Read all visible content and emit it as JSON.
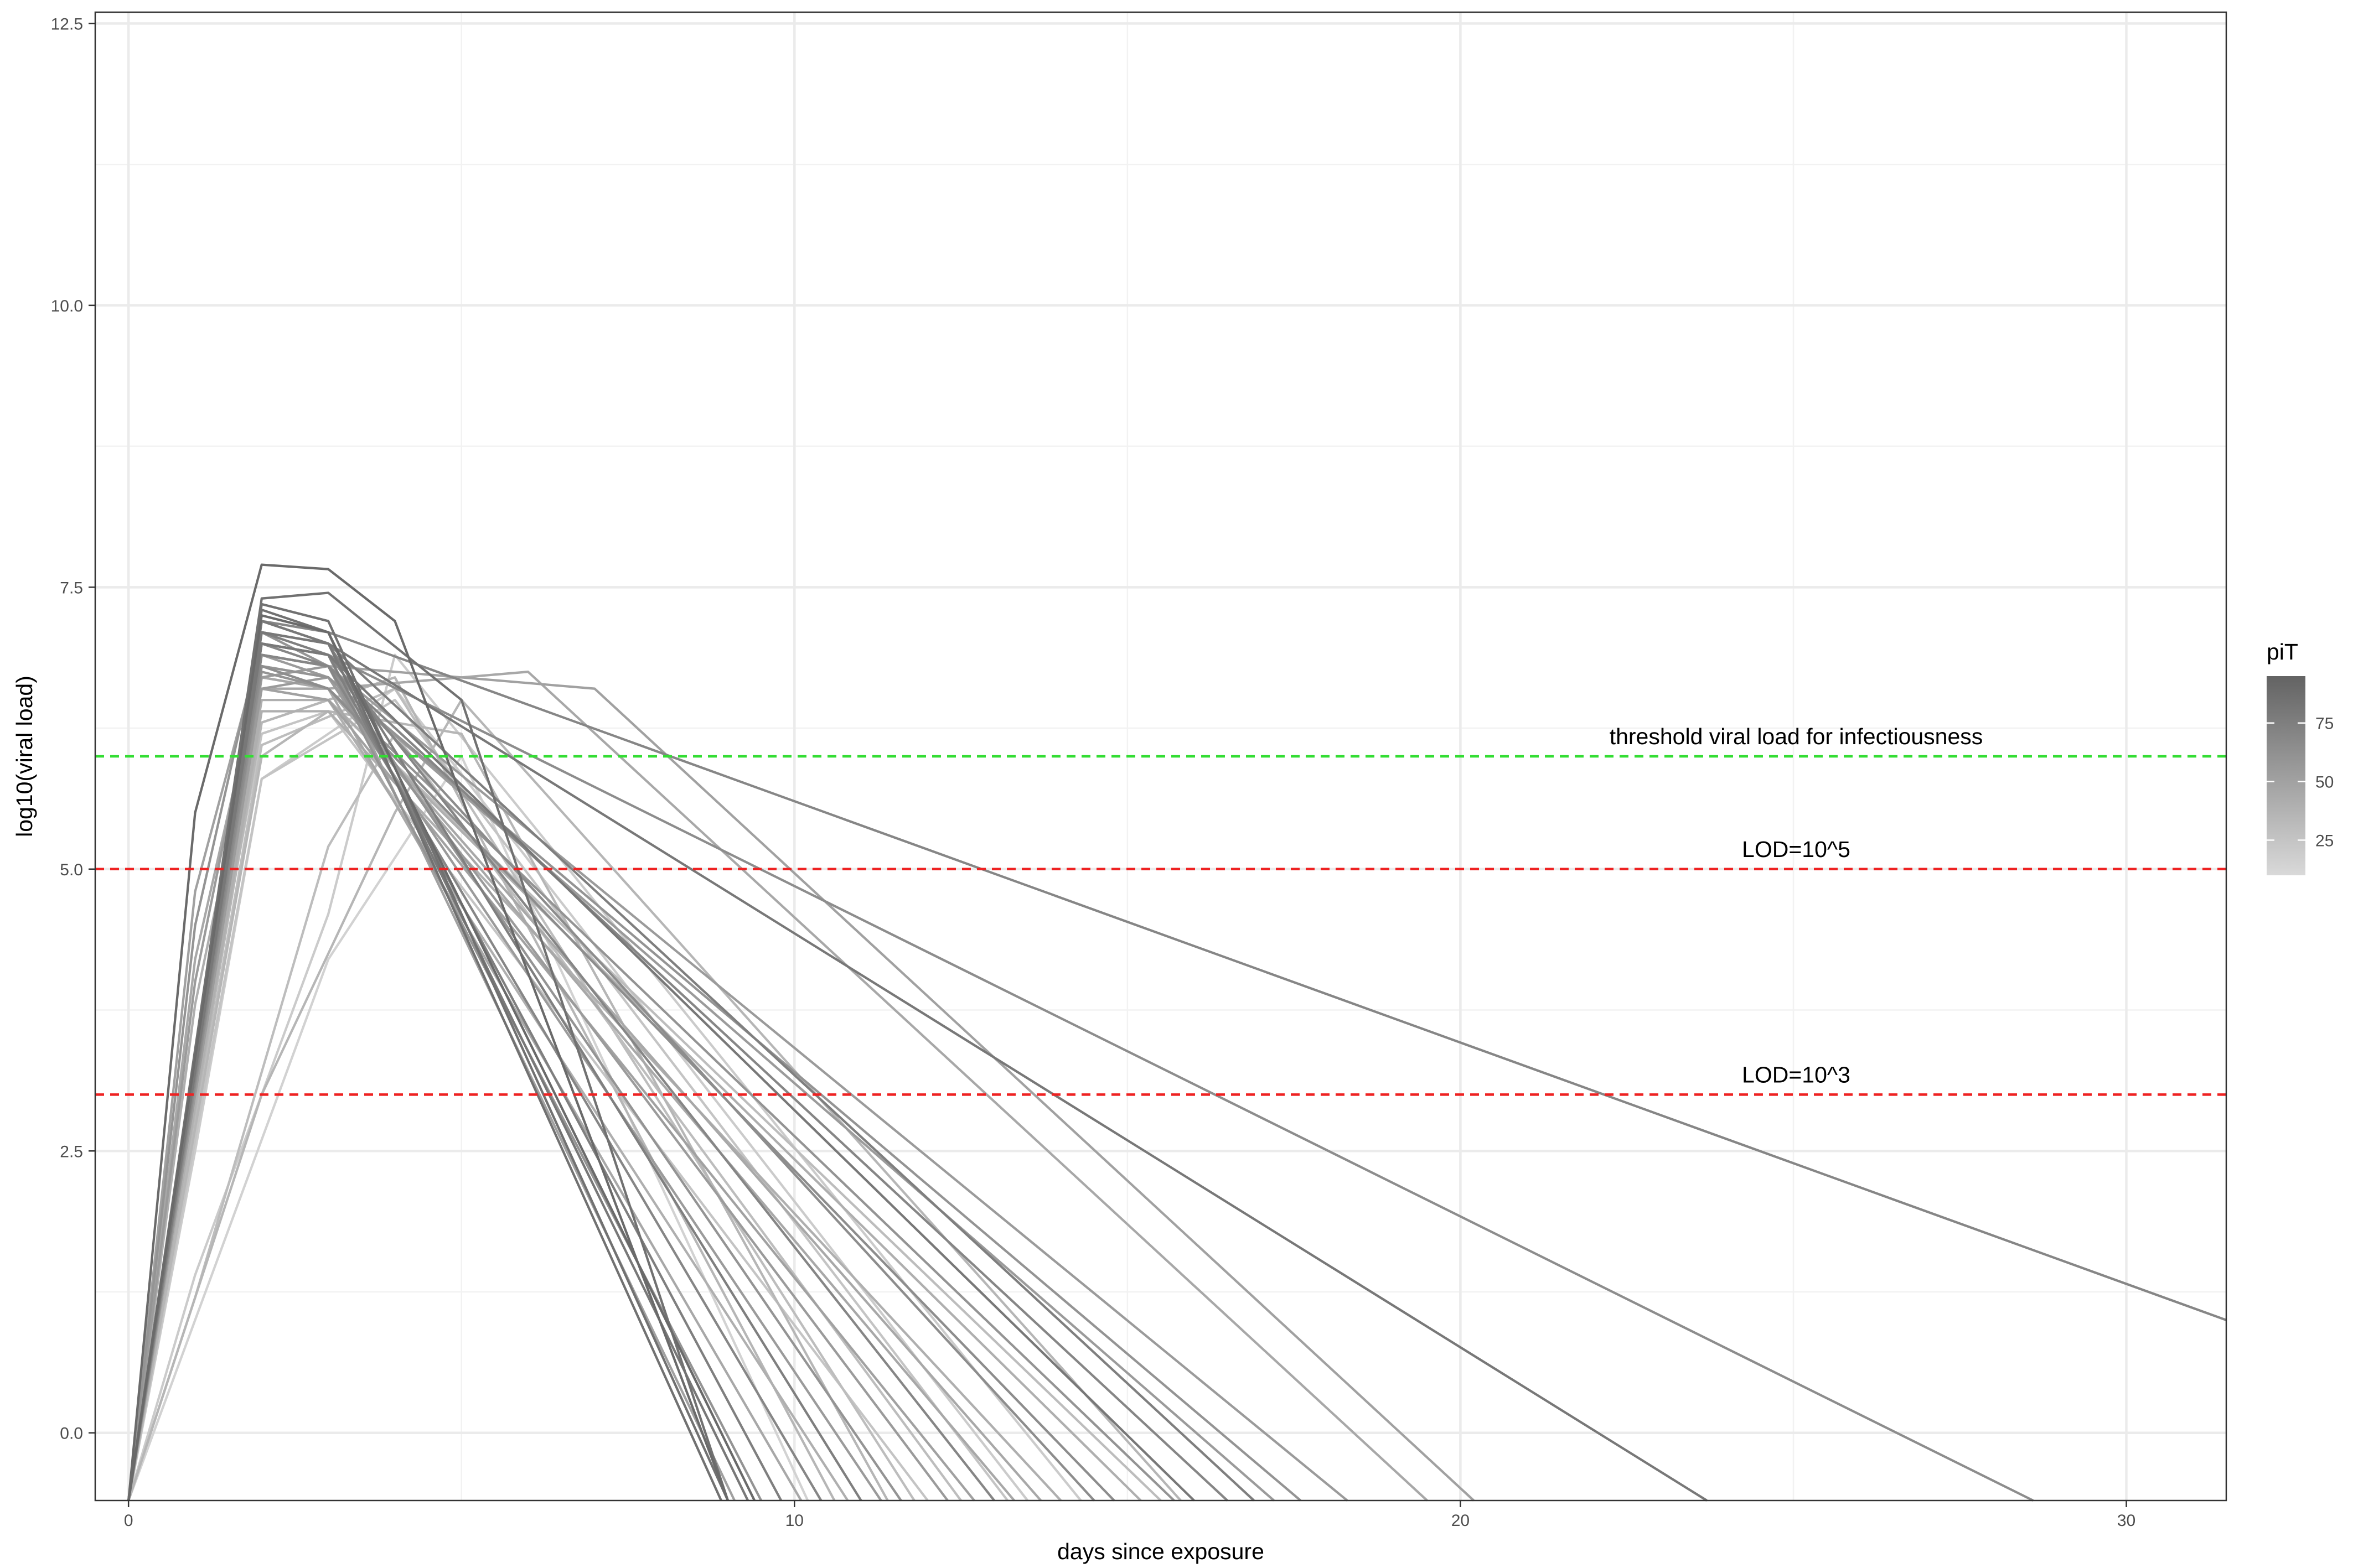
{
  "chart_data": {
    "type": "line",
    "xlabel": "days since exposure",
    "ylabel": "log10(viral load)",
    "xlim": [
      -0.5,
      31.5
    ],
    "ylim": [
      -0.6,
      12.6
    ],
    "x_ticks": [
      0,
      10,
      20,
      30
    ],
    "x_tick_labels": [
      "0",
      "10",
      "20",
      "30"
    ],
    "y_ticks": [
      0.0,
      2.5,
      5.0,
      7.5,
      10.0,
      12.5
    ],
    "y_tick_labels": [
      "0.0",
      "2.5",
      "5.0",
      "7.5",
      "10.0",
      "12.5"
    ],
    "grid": true,
    "legend": {
      "title": "piT",
      "type": "colorbar",
      "placement": "right",
      "ticks": [
        25,
        50,
        75
      ],
      "tick_labels": [
        "25",
        "50",
        "75"
      ],
      "range": [
        10,
        95
      ],
      "color_low": "#d9d9d9",
      "color_high": "#636363"
    },
    "hlines": [
      {
        "y": 6,
        "color": "#33dd33",
        "label": "threshold viral load for infectiousness"
      },
      {
        "y": 5,
        "color": "#ee2222",
        "label": "LOD=10^5"
      },
      {
        "y": 3,
        "color": "#ee2222",
        "label": "LOD=10^3"
      }
    ],
    "series": [
      {
        "piT": 90,
        "x": [
          0,
          1,
          2,
          3,
          4,
          9
        ],
        "y": [
          -0.6,
          5.5,
          7.7,
          7.66,
          7.2,
          -0.6
        ]
      },
      {
        "piT": 85,
        "x": [
          0,
          2,
          3,
          5,
          9
        ],
        "y": [
          -0.6,
          7.4,
          7.45,
          6.5,
          -0.6
        ]
      },
      {
        "piT": 70,
        "x": [
          0,
          2,
          3,
          31.5
        ],
        "y": [
          -0.6,
          7.2,
          7.1,
          1.0
        ]
      },
      {
        "piT": 65,
        "x": [
          0,
          2,
          3,
          28.6
        ],
        "y": [
          -0.6,
          7.0,
          6.9,
          -0.6
        ]
      },
      {
        "piT": 80,
        "x": [
          0,
          2,
          3,
          23.7
        ],
        "y": [
          -0.6,
          7.1,
          7.0,
          -0.6
        ]
      },
      {
        "piT": 50,
        "x": [
          0,
          2,
          3,
          7,
          20.2
        ],
        "y": [
          -0.6,
          6.9,
          6.8,
          6.6,
          -0.6
        ]
      },
      {
        "piT": 45,
        "x": [
          0,
          2,
          3,
          6,
          19.5
        ],
        "y": [
          -0.6,
          6.7,
          6.6,
          6.75,
          -0.6
        ]
      },
      {
        "piT": 85,
        "x": [
          0,
          2,
          3,
          8.9
        ],
        "y": [
          -0.6,
          7.3,
          7.1,
          -0.6
        ]
      },
      {
        "piT": 80,
        "x": [
          0,
          2,
          3,
          9.3
        ],
        "y": [
          -0.6,
          7.2,
          7.0,
          -0.6
        ]
      },
      {
        "piT": 75,
        "x": [
          0,
          2,
          3,
          9.8
        ],
        "y": [
          -0.6,
          7.1,
          6.9,
          -0.6
        ]
      },
      {
        "piT": 70,
        "x": [
          0,
          2,
          3,
          10.4
        ],
        "y": [
          -0.6,
          7.0,
          6.8,
          -0.6
        ]
      },
      {
        "piT": 75,
        "x": [
          0,
          2,
          3,
          11.0
        ],
        "y": [
          -0.6,
          7.2,
          7.0,
          -0.6
        ]
      },
      {
        "piT": 60,
        "x": [
          0,
          2,
          3,
          11.6
        ],
        "y": [
          -0.6,
          6.9,
          6.8,
          -0.6
        ]
      },
      {
        "piT": 55,
        "x": [
          0,
          2,
          3,
          12.3
        ],
        "y": [
          -0.6,
          6.8,
          6.7,
          -0.6
        ]
      },
      {
        "piT": 70,
        "x": [
          0,
          2,
          3,
          13.0
        ],
        "y": [
          -0.6,
          7.0,
          6.9,
          -0.6
        ]
      },
      {
        "piT": 45,
        "x": [
          0,
          2,
          3,
          13.7
        ],
        "y": [
          -0.6,
          6.6,
          6.6,
          -0.6
        ]
      },
      {
        "piT": 65,
        "x": [
          0,
          2,
          3,
          14.5
        ],
        "y": [
          -0.6,
          6.9,
          6.8,
          -0.6
        ]
      },
      {
        "piT": 40,
        "x": [
          0,
          2,
          3,
          15.2
        ],
        "y": [
          -0.6,
          6.5,
          6.5,
          -0.6
        ]
      },
      {
        "piT": 80,
        "x": [
          0,
          2,
          3,
          16.0
        ],
        "y": [
          -0.6,
          7.0,
          6.9,
          -0.6
        ]
      },
      {
        "piT": 75,
        "x": [
          0,
          2,
          3,
          16.9
        ],
        "y": [
          -0.6,
          7.1,
          7.0,
          -0.6
        ]
      },
      {
        "piT": 60,
        "x": [
          0,
          2,
          3,
          17.6
        ],
        "y": [
          -0.6,
          6.8,
          6.7,
          -0.6
        ]
      },
      {
        "piT": 55,
        "x": [
          0,
          2,
          3,
          18.3
        ],
        "y": [
          -0.6,
          6.7,
          6.8,
          -0.6
        ]
      },
      {
        "piT": 35,
        "x": [
          0,
          2,
          4,
          10.6
        ],
        "y": [
          -0.6,
          6.3,
          6.7,
          -0.6
        ]
      },
      {
        "piT": 30,
        "x": [
          0,
          2,
          4,
          11.8
        ],
        "y": [
          -0.6,
          6.1,
          6.6,
          -0.6
        ]
      },
      {
        "piT": 25,
        "x": [
          0,
          2,
          4,
          13.2
        ],
        "y": [
          -0.6,
          5.8,
          6.5,
          -0.6
        ]
      },
      {
        "piT": 30,
        "x": [
          0,
          1,
          3,
          4,
          12.5
        ],
        "y": [
          -0.6,
          1.2,
          5.2,
          6.2,
          -0.6
        ]
      },
      {
        "piT": 20,
        "x": [
          0,
          1,
          3,
          4,
          14.3
        ],
        "y": [
          -0.6,
          1.4,
          4.6,
          6.9,
          -0.6
        ]
      },
      {
        "piT": 35,
        "x": [
          0,
          2,
          4,
          5,
          15.8
        ],
        "y": [
          -0.6,
          3.0,
          5.5,
          6.5,
          -0.6
        ]
      },
      {
        "piT": 50,
        "x": [
          0,
          1,
          2,
          3,
          9.1
        ],
        "y": [
          -0.6,
          4.8,
          7.0,
          6.9,
          -0.6
        ]
      },
      {
        "piT": 60,
        "x": [
          0,
          1,
          2,
          3,
          9.5
        ],
        "y": [
          -0.6,
          4.5,
          7.1,
          6.8,
          -0.6
        ]
      },
      {
        "piT": 45,
        "x": [
          0,
          1,
          2,
          3,
          10.1
        ],
        "y": [
          -0.6,
          4.2,
          6.8,
          6.6,
          -0.6
        ]
      },
      {
        "piT": 40,
        "x": [
          0,
          1,
          2,
          3,
          10.8
        ],
        "y": [
          -0.6,
          3.8,
          6.6,
          6.5,
          -0.6
        ]
      },
      {
        "piT": 55,
        "x": [
          0,
          1,
          2,
          3,
          11.3
        ],
        "y": [
          -0.6,
          4.0,
          6.9,
          6.7,
          -0.6
        ]
      },
      {
        "piT": 25,
        "x": [
          0,
          1,
          2,
          3,
          12.0
        ],
        "y": [
          -0.6,
          3.0,
          6.2,
          6.4,
          -0.6
        ]
      },
      {
        "piT": 20,
        "x": [
          0,
          1,
          2,
          4,
          13.5
        ],
        "y": [
          -0.6,
          2.5,
          5.8,
          6.6,
          -0.6
        ]
      },
      {
        "piT": 50,
        "x": [
          0,
          2,
          3,
          12.7
        ],
        "y": [
          -0.6,
          6.6,
          6.5,
          -0.6
        ]
      },
      {
        "piT": 40,
        "x": [
          0,
          2,
          3,
          14.0
        ],
        "y": [
          -0.6,
          6.4,
          6.4,
          -0.6
        ]
      },
      {
        "piT": 65,
        "x": [
          0,
          2,
          3,
          14.8
        ],
        "y": [
          -0.6,
          6.8,
          6.6,
          -0.6
        ]
      },
      {
        "piT": 30,
        "x": [
          0,
          2,
          3,
          15.5
        ],
        "y": [
          -0.6,
          6.3,
          6.5,
          -0.6
        ]
      },
      {
        "piT": 70,
        "x": [
          0,
          2,
          3,
          16.5
        ],
        "y": [
          -0.6,
          6.9,
          6.8,
          -0.6
        ]
      },
      {
        "piT": 85,
        "x": [
          0,
          2,
          3,
          9.0
        ],
        "y": [
          -0.6,
          7.35,
          7.2,
          -0.6
        ]
      },
      {
        "piT": 90,
        "x": [
          0,
          2,
          3,
          9.4
        ],
        "y": [
          -0.6,
          7.25,
          7.1,
          -0.6
        ]
      },
      {
        "piT": 35,
        "x": [
          0,
          2,
          3,
          5,
          11.4
        ],
        "y": [
          -0.6,
          6.0,
          6.4,
          6.2,
          -0.6
        ]
      },
      {
        "piT": 15,
        "x": [
          0,
          1,
          3,
          5,
          10.2
        ],
        "y": [
          -0.6,
          1.0,
          4.2,
          6.0,
          -0.6
        ]
      },
      {
        "piT": 45,
        "x": [
          0,
          2,
          3,
          13.3
        ],
        "y": [
          -0.6,
          6.7,
          6.6,
          -0.6
        ]
      },
      {
        "piT": 60,
        "x": [
          0,
          2,
          3,
          15.7
        ],
        "y": [
          -0.6,
          6.75,
          6.6,
          -0.6
        ]
      },
      {
        "piT": 55,
        "x": [
          0,
          2,
          3,
          17.2
        ],
        "y": [
          -0.6,
          6.6,
          6.7,
          -0.6
        ]
      }
    ]
  }
}
